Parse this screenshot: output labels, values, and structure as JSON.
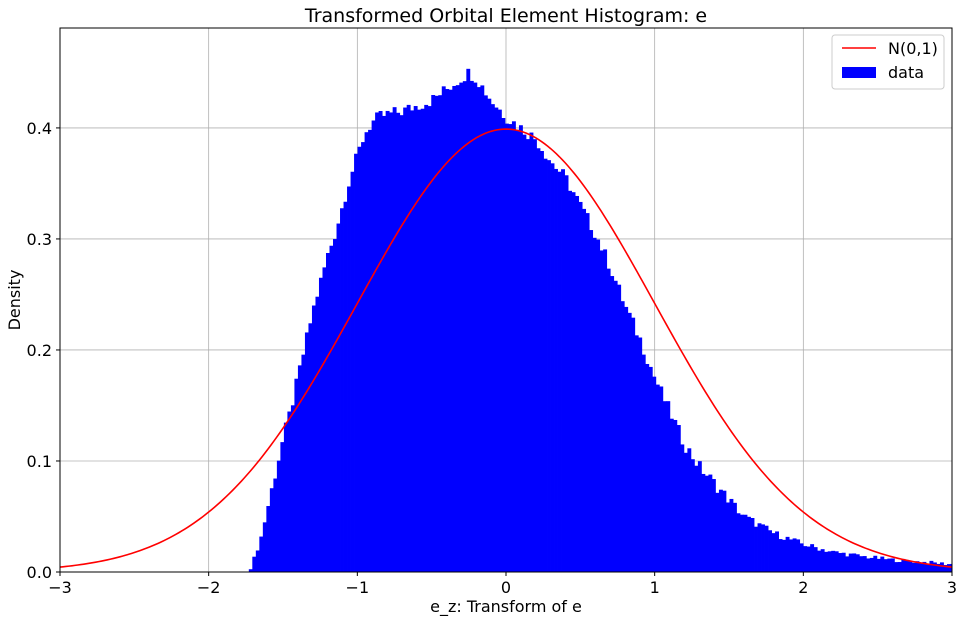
{
  "chart_data": {
    "type": "histogram",
    "title": "Transformed Orbital Element Histogram: e",
    "xlabel": "e_z: Transform of e",
    "ylabel": "Density",
    "xlim": [
      -3,
      3
    ],
    "ylim": [
      0,
      0.49
    ],
    "x_ticks": [
      -3,
      -2,
      -1,
      0,
      1,
      2,
      3
    ],
    "x_tick_labels": [
      "−3",
      "−2",
      "−1",
      "0",
      "1",
      "2",
      "3"
    ],
    "y_ticks": [
      0.0,
      0.1,
      0.2,
      0.3,
      0.4
    ],
    "y_tick_labels": [
      "0.0",
      "0.1",
      "0.2",
      "0.3",
      "0.4"
    ],
    "grid": true,
    "legend_position": "top-right",
    "series": [
      {
        "name": "N(0,1)",
        "kind": "line",
        "color": "#ff0000",
        "function": "standard normal pdf",
        "x": [
          -3.0,
          -2.5,
          -2.0,
          -1.5,
          -1.0,
          -0.5,
          0.0,
          0.5,
          1.0,
          1.5,
          2.0,
          2.5,
          3.0
        ],
        "y": [
          0.0044,
          0.0175,
          0.054,
          0.1295,
          0.242,
          0.3521,
          0.3989,
          0.3521,
          0.242,
          0.1295,
          0.054,
          0.0175,
          0.0044
        ]
      },
      {
        "name": "data",
        "kind": "histogram",
        "color": "#0000ff",
        "bin_edges_range": [
          -1.73,
          3.0
        ],
        "bin_width": 0.0236,
        "profile_x": [
          -1.73,
          -1.7,
          -1.65,
          -1.6,
          -1.55,
          -1.5,
          -1.45,
          -1.4,
          -1.35,
          -1.3,
          -1.25,
          -1.2,
          -1.15,
          -1.1,
          -1.05,
          -1.0,
          -0.95,
          -0.9,
          -0.85,
          -0.8,
          -0.7,
          -0.6,
          -0.5,
          -0.4,
          -0.3,
          -0.25,
          -0.2,
          -0.1,
          0.0,
          0.1,
          0.2,
          0.3,
          0.4,
          0.5,
          0.6,
          0.7,
          0.8,
          0.9,
          1.0,
          1.1,
          1.2,
          1.3,
          1.4,
          1.5,
          1.6,
          1.8,
          2.0,
          2.2,
          2.4,
          2.6,
          2.8,
          3.0
        ],
        "profile_y": [
          0.0,
          0.01,
          0.03,
          0.06,
          0.09,
          0.12,
          0.145,
          0.175,
          0.205,
          0.235,
          0.26,
          0.285,
          0.305,
          0.33,
          0.355,
          0.375,
          0.395,
          0.405,
          0.41,
          0.412,
          0.415,
          0.42,
          0.425,
          0.435,
          0.445,
          0.45,
          0.445,
          0.425,
          0.41,
          0.4,
          0.39,
          0.37,
          0.355,
          0.33,
          0.305,
          0.275,
          0.24,
          0.21,
          0.175,
          0.145,
          0.115,
          0.095,
          0.08,
          0.065,
          0.05,
          0.035,
          0.025,
          0.018,
          0.014,
          0.011,
          0.009,
          0.007
        ]
      }
    ]
  }
}
